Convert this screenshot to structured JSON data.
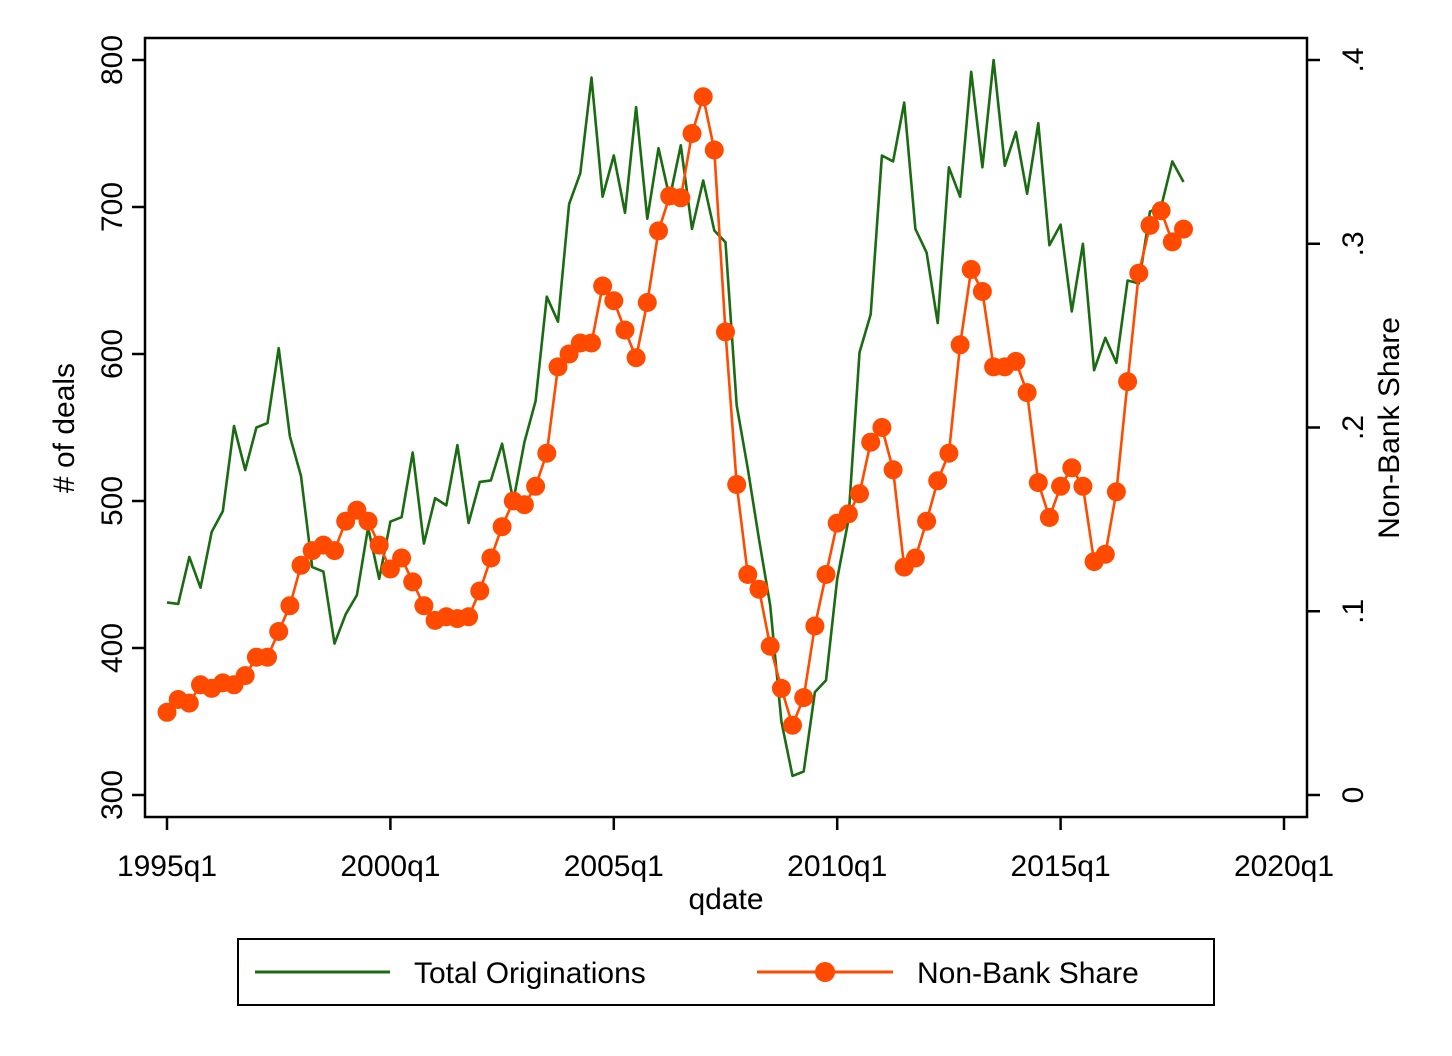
{
  "colors": {
    "total": "#1a6b12",
    "nonbank": "#ff4a00",
    "axis": "#000000",
    "background": "#ffffff"
  },
  "chart_data": {
    "type": "line",
    "title": "",
    "xlabel": "qdate",
    "ylabel_left": "# of deals",
    "ylabel_right": "Non-Bank Share",
    "xlim": [
      "1995q1",
      "2020q1"
    ],
    "ylim_left": [
      300,
      800
    ],
    "ylim_right": [
      0,
      0.4
    ],
    "x_ticks": [
      "1995q1",
      "2000q1",
      "2005q1",
      "2010q1",
      "2015q1",
      "2020q1"
    ],
    "y_left_ticks": [
      "300",
      "400",
      "500",
      "600",
      "700",
      "800"
    ],
    "y_left_tick_values": [
      300,
      400,
      500,
      600,
      700,
      800
    ],
    "y_right_ticks": [
      "0",
      ".1",
      ".2",
      ".3",
      ".4"
    ],
    "y_right_tick_values": [
      0,
      0.1,
      0.2,
      0.3,
      0.4
    ],
    "grid": false,
    "legend_position": "bottom",
    "x": [
      "1995q1",
      "1995q2",
      "1995q3",
      "1995q4",
      "1996q1",
      "1996q2",
      "1996q3",
      "1996q4",
      "1997q1",
      "1997q2",
      "1997q3",
      "1997q4",
      "1998q1",
      "1998q2",
      "1998q3",
      "1998q4",
      "1999q1",
      "1999q2",
      "1999q3",
      "1999q4",
      "2000q1",
      "2000q2",
      "2000q3",
      "2000q4",
      "2001q1",
      "2001q2",
      "2001q3",
      "2001q4",
      "2002q1",
      "2002q2",
      "2002q3",
      "2002q4",
      "2003q1",
      "2003q2",
      "2003q3",
      "2003q4",
      "2004q1",
      "2004q2",
      "2004q3",
      "2004q4",
      "2005q1",
      "2005q2",
      "2005q3",
      "2005q4",
      "2006q1",
      "2006q2",
      "2006q3",
      "2006q4",
      "2007q1",
      "2007q2",
      "2007q3",
      "2007q4",
      "2008q1",
      "2008q2",
      "2008q3",
      "2008q4",
      "2009q1",
      "2009q2",
      "2009q3",
      "2009q4",
      "2010q1",
      "2010q2",
      "2010q3",
      "2010q4",
      "2011q1",
      "2011q2",
      "2011q3",
      "2011q4",
      "2012q1",
      "2012q2",
      "2012q3",
      "2012q4",
      "2013q1",
      "2013q2",
      "2013q3",
      "2013q4",
      "2014q1",
      "2014q2",
      "2014q3",
      "2014q4",
      "2015q1",
      "2015q2",
      "2015q3",
      "2015q4",
      "2016q1",
      "2016q2",
      "2016q3",
      "2016q4",
      "2017q1",
      "2017q2",
      "2017q3",
      "2017q4"
    ],
    "series": [
      {
        "name": "Total Originations",
        "axis": "left",
        "marker": "none",
        "values": [
          431,
          430,
          462,
          441,
          479,
          493,
          551,
          521,
          550,
          553,
          604,
          544,
          517,
          455,
          452,
          403,
          423,
          436,
          482,
          447,
          486,
          489,
          533,
          471,
          502,
          497,
          538,
          485,
          513,
          514,
          539,
          500,
          540,
          568,
          639,
          622,
          702,
          723,
          788,
          707,
          735,
          696,
          768,
          692,
          740,
          706,
          742,
          685,
          718,
          684,
          676,
          565,
          522,
          474,
          429,
          350,
          313,
          316,
          370,
          378,
          447,
          487,
          601,
          627,
          735,
          731,
          771,
          685,
          669,
          621,
          727,
          707,
          792,
          727,
          800,
          728,
          751,
          709,
          757,
          674,
          688,
          629,
          675,
          589,
          611,
          594,
          650,
          648,
          697,
          700,
          731,
          717
        ]
      },
      {
        "name": "Non-Bank Share",
        "axis": "right",
        "marker": "circle",
        "values": [
          0.045,
          0.052,
          0.05,
          0.06,
          0.058,
          0.061,
          0.06,
          0.065,
          0.075,
          0.075,
          0.089,
          0.103,
          0.125,
          0.133,
          0.136,
          0.133,
          0.149,
          0.155,
          0.149,
          0.136,
          0.123,
          0.129,
          0.116,
          0.103,
          0.095,
          0.097,
          0.096,
          0.097,
          0.111,
          0.129,
          0.146,
          0.16,
          0.158,
          0.168,
          0.186,
          0.233,
          0.24,
          0.246,
          0.246,
          0.277,
          0.269,
          0.253,
          0.238,
          0.268,
          0.307,
          0.326,
          0.325,
          0.36,
          0.38,
          0.351,
          0.252,
          0.169,
          0.12,
          0.112,
          0.081,
          0.058,
          0.038,
          0.053,
          0.092,
          0.12,
          0.148,
          0.153,
          0.164,
          0.192,
          0.2,
          0.177,
          0.124,
          0.129,
          0.149,
          0.171,
          0.186,
          0.245,
          0.286,
          0.274,
          0.233,
          0.233,
          0.236,
          0.219,
          0.17,
          0.151,
          0.168,
          0.178,
          0.168,
          0.127,
          0.131,
          0.165,
          0.225,
          0.284,
          0.31,
          0.318,
          0.301,
          0.308
        ]
      }
    ]
  }
}
